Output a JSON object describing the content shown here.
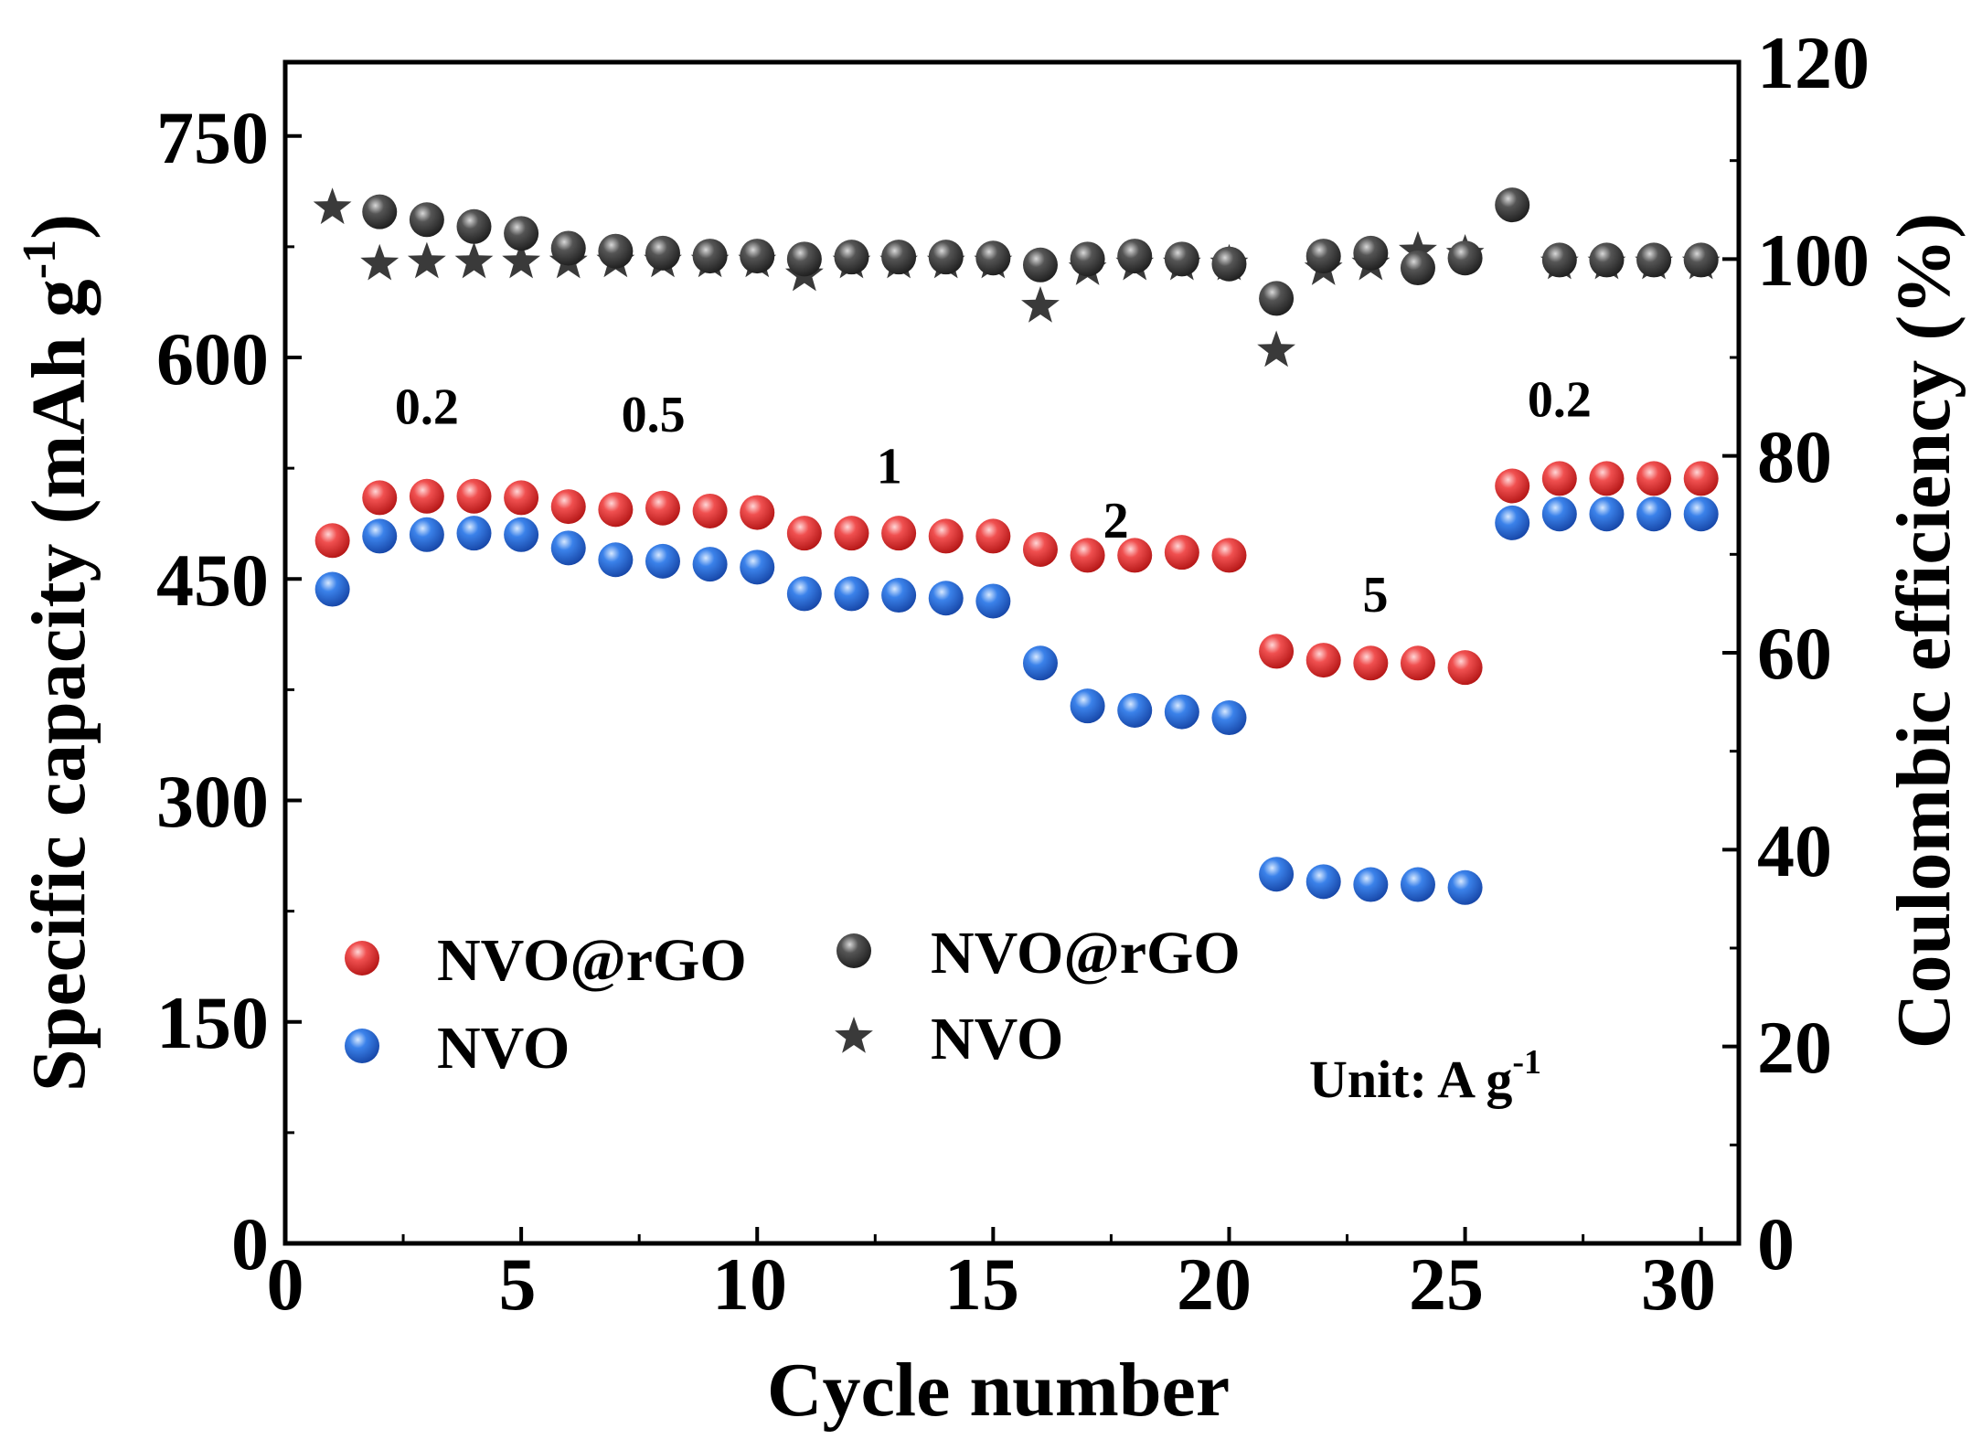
{
  "chart_data": {
    "type": "scatter",
    "title": "",
    "xlabel": "Cycle number",
    "ylabel_left": "Specific capacity (mAh g",
    "ylabel_left_sup": "-1",
    "ylabel_left_close": ")",
    "ylabel_right": "Coulombic efficiency (%)",
    "xlim": [
      0,
      30.8
    ],
    "ylim_left": [
      0,
      800
    ],
    "ylim_right": [
      0,
      120
    ],
    "x_ticks": [
      0,
      5,
      10,
      15,
      20,
      25,
      30
    ],
    "y_left_ticks": [
      0,
      150,
      300,
      450,
      600,
      750
    ],
    "y_right_ticks": [
      0,
      20,
      40,
      60,
      80,
      100,
      120
    ],
    "x_tick_labels": [
      "0",
      "5",
      "10",
      "15",
      "20",
      "25",
      "30"
    ],
    "y_left_tick_labels": [
      "0",
      "150",
      "300",
      "450",
      "600",
      "750"
    ],
    "y_right_tick_labels": [
      "0",
      "20",
      "40",
      "60",
      "80",
      "100",
      "120"
    ],
    "grid": false,
    "legend": [
      {
        "label": "NVO@rGO",
        "marker": "sphere",
        "color": "#e03030"
      },
      {
        "label": "NVO",
        "marker": "sphere",
        "color": "#2a6fd8"
      },
      {
        "label": "NVO@rGO",
        "marker": "sphere",
        "color": "#3a3a3a"
      },
      {
        "label": "NVO",
        "marker": "star",
        "color": "#3a3a3a"
      }
    ],
    "annotations": [
      {
        "text": "0.2",
        "x": 3,
        "y": 555
      },
      {
        "text": "0.5",
        "x": 7.8,
        "y": 550
      },
      {
        "text": "1",
        "x": 12.8,
        "y": 515
      },
      {
        "text": "2",
        "x": 17.6,
        "y": 478
      },
      {
        "text": "5",
        "x": 23.1,
        "y": 428
      },
      {
        "text": "0.2",
        "x": 27,
        "y": 560
      }
    ],
    "unit_text": "Unit: A g",
    "unit_sup": "-1",
    "x": [
      1,
      2,
      3,
      4,
      5,
      6,
      7,
      8,
      9,
      10,
      11,
      12,
      13,
      14,
      15,
      16,
      17,
      18,
      19,
      20,
      21,
      22,
      23,
      24,
      25,
      26,
      27,
      28,
      29,
      30
    ],
    "series": [
      {
        "name": "NVO@rGO capacity",
        "axis": "left",
        "marker": "sphere",
        "color": "#e03030",
        "values": [
          476,
          505,
          506,
          506,
          505,
          499,
          497,
          498,
          496,
          495,
          481,
          481,
          481,
          479,
          479,
          470,
          466,
          466,
          468,
          466,
          401,
          395,
          393,
          393,
          390,
          513,
          518,
          518,
          518,
          518
        ]
      },
      {
        "name": "NVO capacity",
        "axis": "left",
        "marker": "sphere",
        "color": "#2a6fd8",
        "values": [
          443,
          479,
          480,
          481,
          480,
          471,
          463,
          462,
          460,
          458,
          440,
          440,
          439,
          437,
          435,
          393,
          364,
          361,
          360,
          356,
          250,
          245,
          243,
          243,
          241,
          488,
          494,
          494,
          494,
          494
        ]
      },
      {
        "name": "NVO@rGO efficiency",
        "axis": "right",
        "marker": "sphere",
        "color": "#3a3a3a",
        "values": [
          null,
          104.8,
          104.0,
          103.3,
          102.6,
          101.1,
          100.8,
          100.6,
          100.3,
          100.3,
          100.0,
          100.2,
          100.2,
          100.2,
          100.1,
          99.4,
          100.0,
          100.3,
          100.0,
          99.5,
          96.0,
          100.3,
          100.6,
          99.1,
          100.1,
          105.5,
          99.9,
          99.9,
          99.9,
          99.9
        ]
      },
      {
        "name": "NVO efficiency",
        "axis": "right",
        "marker": "star",
        "color": "#3a3a3a",
        "values": [
          105.2,
          99.5,
          99.7,
          99.7,
          99.7,
          99.7,
          99.8,
          99.8,
          99.8,
          99.8,
          98.4,
          99.7,
          99.7,
          99.7,
          99.7,
          95.2,
          99.0,
          99.5,
          99.5,
          99.5,
          90.7,
          99.0,
          99.5,
          100.8,
          100.5,
          null,
          99.6,
          99.6,
          99.6,
          99.6
        ]
      }
    ]
  }
}
